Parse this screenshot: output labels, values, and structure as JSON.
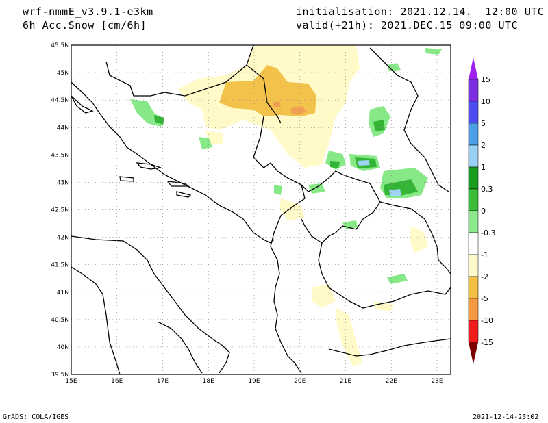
{
  "header": {
    "model": "wrf-nmmE_v3.9.1-e3km",
    "variable": "6h Acc.Snow [cm/6h]",
    "init": "initialisation: 2021.12.14.  12:00 UTC",
    "valid": "valid(+21h): 2021.DEC.15 09:00 UTC"
  },
  "footer": {
    "credit": "GrADS: COLA/IGES",
    "timestamp": "2021-12-14-23:02"
  },
  "map": {
    "lat_labels": [
      "45.5N",
      "45N",
      "44.5N",
      "44N",
      "43.5N",
      "43N",
      "42.5N",
      "42N",
      "41.5N",
      "41N",
      "40.5N",
      "40N",
      "39.5N"
    ],
    "lon_labels": [
      "15E",
      "16E",
      "17E",
      "18E",
      "19E",
      "20E",
      "21E",
      "22E",
      "23E"
    ],
    "extent": {
      "lon": [
        15,
        23.3
      ],
      "lat": [
        39.5,
        45.5
      ]
    }
  },
  "legend": {
    "entries": [
      {
        "label": "15",
        "color": "#7b2fe0"
      },
      {
        "label": "10",
        "color": "#4c4cf0"
      },
      {
        "label": "5",
        "color": "#4f9fe8"
      },
      {
        "label": "2",
        "color": "#99d0f6"
      },
      {
        "label": "1",
        "color": "#179c1e"
      },
      {
        "label": "0.3",
        "color": "#3bbd3b"
      },
      {
        "label": "0",
        "color": "#8de88d"
      },
      {
        "label": "-0.3",
        "color": "#ffffff"
      },
      {
        "label": "-1",
        "color": "#fff8c8"
      },
      {
        "label": "-2",
        "color": "#f2c040"
      },
      {
        "label": "-5",
        "color": "#f59a40"
      },
      {
        "label": "-10",
        "color": "#f21c1c"
      },
      {
        "label": "-15",
        "color": "#b80000"
      }
    ],
    "bottom_color": "#7a0000",
    "top_color": "#a020f0"
  },
  "colors": {
    "light_yellow": "#fffac8",
    "yellow": "#f2c24a",
    "orange": "#f0a050",
    "light_green": "#86e886",
    "green": "#35b535",
    "dark_green": "#138a13",
    "light_blue": "#9fd3f5"
  }
}
